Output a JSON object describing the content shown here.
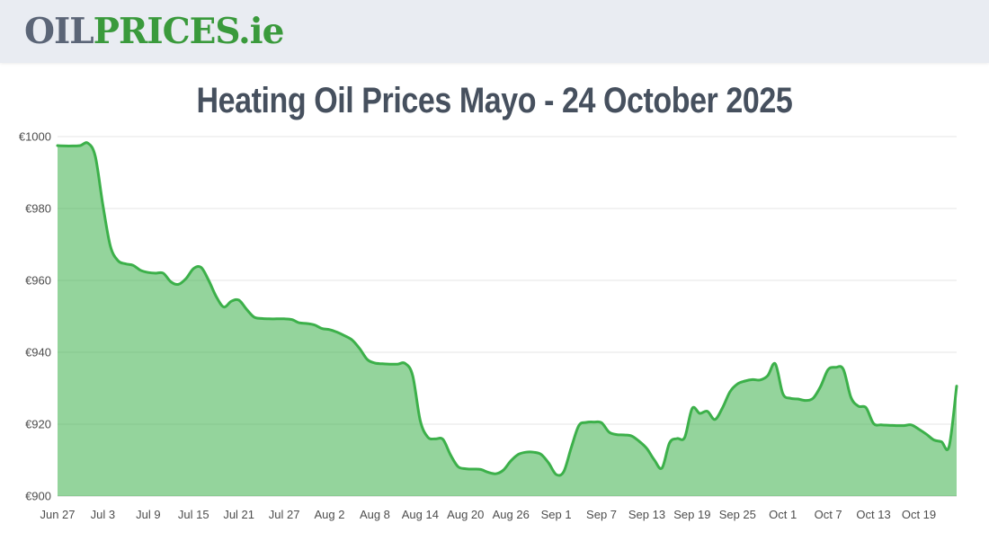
{
  "banner": {
    "logo_oil": "OIL",
    "logo_prices": "PRICES",
    "logo_tld": ".ie",
    "colors": {
      "oil": "#5b6577",
      "prices": "#3a9a3c"
    }
  },
  "title": "Heating Oil Prices Mayo - 24 October 2025",
  "chart_data": {
    "type": "area",
    "title": "Heating Oil Prices Mayo - 24 October 2025",
    "currency": "EUR",
    "unit": "€ per 1000L",
    "start_date": "2025-06-27",
    "end_date": "2025-10-24",
    "sampling": "daily",
    "grid": true,
    "legend": false,
    "ylim": [
      900,
      1000
    ],
    "y_ticks": [
      {
        "value": 900,
        "label": "€900"
      },
      {
        "value": 920,
        "label": "€920"
      },
      {
        "value": 940,
        "label": "€940"
      },
      {
        "value": 960,
        "label": "€960"
      },
      {
        "value": 980,
        "label": "€980"
      },
      {
        "value": 1000,
        "label": "€1000"
      }
    ],
    "x_tick_labels": [
      "Jun 27",
      "Jul 3",
      "Jul 9",
      "Jul 15",
      "Jul 21",
      "Jul 27",
      "Aug 2",
      "Aug 8",
      "Aug 14",
      "Aug 20",
      "Aug 26",
      "Sep 1",
      "Sep 7",
      "Sep 13",
      "Sep 19",
      "Sep 25",
      "Oct 1",
      "Oct 7",
      "Oct 13",
      "Oct 19"
    ],
    "x_tick_day_offsets": [
      0,
      6,
      12,
      18,
      24,
      30,
      36,
      42,
      48,
      54,
      60,
      66,
      72,
      78,
      84,
      90,
      96,
      102,
      108,
      114
    ],
    "series": [
      {
        "name": "Heating Oil Price Mayo",
        "values": [
          997.5,
          997.4,
          997.4,
          997.5,
          998.2,
          994.5,
          981.0,
          969.5,
          965.5,
          964.6,
          964.2,
          962.8,
          962.2,
          962.0,
          962.0,
          959.6,
          958.9,
          960.5,
          963.3,
          963.6,
          960.0,
          955.5,
          952.6,
          954.2,
          954.5,
          952.0,
          949.8,
          949.4,
          949.3,
          949.3,
          949.3,
          949.1,
          948.2,
          948.0,
          947.6,
          946.6,
          946.3,
          945.6,
          944.6,
          943.4,
          941.0,
          938.0,
          937.0,
          936.8,
          936.7,
          936.7,
          936.9,
          933.5,
          921.0,
          916.4,
          915.9,
          915.8,
          911.5,
          908.2,
          907.6,
          907.5,
          907.4,
          906.6,
          906.2,
          907.2,
          909.8,
          911.6,
          912.2,
          912.2,
          911.6,
          909.2,
          906.0,
          906.8,
          913.5,
          919.6,
          920.5,
          920.6,
          920.4,
          917.8,
          917.1,
          917.0,
          916.7,
          915.2,
          913.2,
          910.0,
          907.8,
          914.8,
          916.0,
          916.3,
          924.4,
          923.0,
          923.6,
          921.3,
          924.5,
          929.0,
          931.2,
          932.0,
          932.4,
          932.3,
          933.5,
          936.8,
          928.5,
          927.2,
          927.0,
          926.6,
          927.2,
          930.5,
          935.2,
          935.8,
          935.3,
          927.5,
          925.0,
          924.6,
          920.2,
          919.8,
          919.7,
          919.6,
          919.6,
          919.8,
          918.6,
          917.2,
          915.6,
          915.1,
          913.8,
          930.6
        ]
      }
    ],
    "colors": {
      "line": "#3cb04a",
      "fill_rgba": "rgba(60,176,74,0.55)",
      "grid": "#e6e6e6",
      "axis_line": "#d0d0d0",
      "axis_text": "#4d4d4d"
    }
  }
}
